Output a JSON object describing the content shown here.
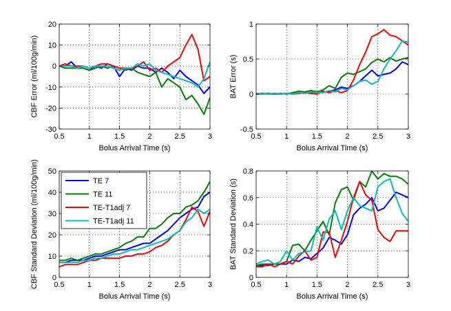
{
  "chart_data": [
    {
      "type": "line",
      "xlabel": "Bolus Arrival Time (s)",
      "ylabel": "CBF Error (ml/100g/min)",
      "xlim": [
        0.5,
        3
      ],
      "ylim": [
        -30,
        20
      ],
      "xticks": [
        0.5,
        1,
        1.5,
        2,
        2.5,
        3
      ],
      "xtick_labels": [
        "0.5",
        "1",
        "1.5",
        "2",
        "2.5",
        "3"
      ],
      "yticks": [
        -30,
        -20,
        -10,
        0,
        10,
        20
      ],
      "ytick_labels": [
        "-30",
        "-20",
        "-10",
        "0",
        "10",
        "20"
      ],
      "grid": true,
      "x": [
        0.5,
        0.6,
        0.7,
        0.8,
        0.9,
        1.0,
        1.1,
        1.2,
        1.3,
        1.4,
        1.5,
        1.6,
        1.7,
        1.8,
        1.9,
        2.0,
        2.1,
        2.2,
        2.3,
        2.4,
        2.5,
        2.6,
        2.7,
        2.8,
        2.9,
        3.0
      ],
      "series": [
        {
          "name": "TE 7",
          "color": "#0000ff",
          "values": [
            0,
            0,
            2,
            -1,
            -1,
            -2,
            0,
            -1,
            1,
            0,
            -5,
            -1,
            -2,
            0,
            -1,
            -1,
            -3,
            -1,
            -3,
            -6,
            -2,
            -5,
            -7,
            -9,
            -13,
            -10
          ]
        },
        {
          "name": "TE 11",
          "color": "#008000",
          "values": [
            0,
            -1,
            -1,
            -1,
            -1,
            -2,
            -1,
            0,
            -1,
            0,
            -1,
            -2,
            -1,
            -3,
            -4,
            -5,
            -3,
            -10,
            -6,
            -8,
            -10,
            -16,
            -14,
            -18,
            -23,
            -15
          ]
        },
        {
          "name": "TE-T1adj 7",
          "color": "#ff0000",
          "values": [
            0,
            1,
            0,
            0,
            0,
            -1,
            0,
            1,
            1,
            0,
            -1,
            -1,
            -1,
            0,
            2,
            -2,
            -1,
            -3,
            0,
            2,
            4,
            10,
            15,
            8,
            -7,
            -5
          ]
        },
        {
          "name": "TE-T1adj 11",
          "color": "#00bfbf",
          "values": [
            0,
            0,
            0,
            -1,
            0,
            -1,
            0,
            0,
            0,
            -1,
            -2,
            -1,
            -1,
            1,
            0,
            1,
            -2,
            -3,
            -4,
            -5,
            -6,
            -7,
            -8,
            -10,
            -6,
            2
          ]
        }
      ]
    },
    {
      "type": "line",
      "xlabel": "Bolus Arrival Time (s)",
      "ylabel": "BAT Error (s)",
      "xlim": [
        0.5,
        3
      ],
      "ylim": [
        -0.5,
        1
      ],
      "xticks": [
        0.5,
        1,
        1.5,
        2,
        2.5,
        3
      ],
      "xtick_labels": [
        "0.5",
        "1",
        "1.5",
        "2",
        "2.5",
        "3"
      ],
      "yticks": [
        -0.5,
        0,
        0.5,
        1
      ],
      "ytick_labels": [
        "-0.5",
        "0",
        "0.5",
        "1"
      ],
      "grid": true,
      "x": [
        0.5,
        0.6,
        0.7,
        0.8,
        0.9,
        1.0,
        1.1,
        1.2,
        1.3,
        1.4,
        1.5,
        1.6,
        1.7,
        1.8,
        1.9,
        2.0,
        2.1,
        2.2,
        2.3,
        2.4,
        2.5,
        2.6,
        2.7,
        2.8,
        2.9,
        3.0
      ],
      "series": [
        {
          "name": "TE 7",
          "color": "#0000ff",
          "values": [
            0,
            0,
            0,
            0.01,
            0,
            0.01,
            0,
            0.01,
            0.02,
            0.02,
            0.01,
            0.03,
            0.04,
            0.06,
            0.1,
            0.08,
            0.12,
            0.18,
            0.26,
            0.34,
            0.26,
            0.28,
            0.3,
            0.36,
            0.46,
            0.42
          ]
        },
        {
          "name": "TE 11",
          "color": "#008000",
          "values": [
            0,
            0.01,
            0,
            0,
            0.01,
            0,
            0.02,
            0.04,
            0.03,
            0.05,
            0.03,
            0.06,
            0.12,
            0.08,
            0.24,
            0.3,
            0.28,
            0.32,
            0.36,
            0.45,
            0.5,
            0.46,
            0.52,
            0.47,
            0.5,
            0.52
          ]
        },
        {
          "name": "TE-T1adj 7",
          "color": "#ff0000",
          "values": [
            0,
            0,
            0.01,
            0,
            0,
            0.01,
            0,
            0.01,
            0.02,
            0.01,
            0,
            0.04,
            0.02,
            0.05,
            0.02,
            0.05,
            0.2,
            0.42,
            0.6,
            0.82,
            0.86,
            0.92,
            0.84,
            0.82,
            0.76,
            0.7
          ]
        },
        {
          "name": "TE-T1adj 11",
          "color": "#00bfbf",
          "values": [
            0.01,
            0,
            0,
            0.01,
            0,
            0.01,
            0,
            0.02,
            0.01,
            0.03,
            0.02,
            0.02,
            0.05,
            0.03,
            0.08,
            0.06,
            0.12,
            0.18,
            0.2,
            0.14,
            0.18,
            0.36,
            0.5,
            0.62,
            0.76,
            0.74
          ]
        }
      ]
    },
    {
      "type": "line",
      "xlabel": "Bolus Arrival Time (s)",
      "ylabel": "CBF Standard Deviation (ml/100g/min)",
      "xlim": [
        0.5,
        3
      ],
      "ylim": [
        0,
        50
      ],
      "xticks": [
        0.5,
        1,
        1.5,
        2,
        2.5,
        3
      ],
      "xtick_labels": [
        "0.5",
        "1",
        "1.5",
        "2",
        "2.5",
        "3"
      ],
      "yticks": [
        0,
        10,
        20,
        30,
        40,
        50
      ],
      "ytick_labels": [
        "0",
        "10",
        "20",
        "30",
        "40",
        "50"
      ],
      "grid": true,
      "legend": "top-left",
      "x": [
        0.5,
        0.6,
        0.7,
        0.8,
        0.9,
        1.0,
        1.1,
        1.2,
        1.3,
        1.4,
        1.5,
        1.6,
        1.7,
        1.8,
        1.9,
        2.0,
        2.1,
        2.2,
        2.3,
        2.4,
        2.5,
        2.6,
        2.7,
        2.8,
        2.9,
        3.0
      ],
      "series": [
        {
          "name": "TE 7",
          "color": "#0000ff",
          "values": [
            7,
            7,
            8,
            8,
            8,
            9,
            10,
            10,
            11,
            12,
            13,
            13,
            14,
            15,
            16,
            16,
            18,
            20,
            22,
            25,
            28,
            30,
            32,
            33,
            38,
            40
          ]
        },
        {
          "name": "TE 11",
          "color": "#008000",
          "values": [
            8,
            8,
            9,
            8,
            9,
            10,
            11,
            11,
            12,
            13,
            14,
            16,
            17,
            19,
            19,
            23,
            23,
            25,
            28,
            30,
            30,
            33,
            34,
            36,
            40,
            45
          ]
        },
        {
          "name": "TE-T1adj 7",
          "color": "#ff0000",
          "values": [
            5,
            6,
            6,
            6,
            7,
            8,
            8,
            9,
            9,
            9,
            9,
            10,
            10,
            11,
            11,
            12,
            14,
            15,
            17,
            20,
            22,
            27,
            33,
            31,
            24,
            31
          ]
        },
        {
          "name": "TE-T1adj 11",
          "color": "#00bfbf",
          "values": [
            7,
            7,
            7,
            7,
            8,
            8,
            9,
            9,
            10,
            11,
            11,
            12,
            13,
            13,
            14,
            15,
            16,
            17,
            18,
            20,
            22,
            26,
            28,
            32,
            30,
            32
          ]
        }
      ]
    },
    {
      "type": "line",
      "xlabel": "Bolus Arrival Time (s)",
      "ylabel": "BAT Standard Deviation (s)",
      "xlim": [
        0.5,
        3
      ],
      "ylim": [
        0,
        0.8
      ],
      "xticks": [
        0.5,
        1,
        1.5,
        2,
        2.5,
        3
      ],
      "xtick_labels": [
        "0.5",
        "1",
        "1.5",
        "2",
        "2.5",
        "3"
      ],
      "yticks": [
        0,
        0.2,
        0.4,
        0.6,
        0.8
      ],
      "ytick_labels": [
        "0",
        "0.2",
        "0.4",
        "0.6",
        "0.8"
      ],
      "grid": true,
      "x": [
        0.5,
        0.6,
        0.7,
        0.8,
        0.9,
        1.0,
        1.1,
        1.2,
        1.3,
        1.4,
        1.5,
        1.6,
        1.7,
        1.8,
        1.9,
        2.0,
        2.1,
        2.2,
        2.3,
        2.4,
        2.5,
        2.6,
        2.7,
        2.8,
        2.9,
        3.0
      ],
      "series": [
        {
          "name": "TE 7",
          "color": "#0000ff",
          "values": [
            0.08,
            0.09,
            0.09,
            0.1,
            0.1,
            0.1,
            0.13,
            0.12,
            0.15,
            0.14,
            0.18,
            0.22,
            0.3,
            0.28,
            0.25,
            0.32,
            0.47,
            0.52,
            0.55,
            0.6,
            0.5,
            0.52,
            0.58,
            0.64,
            0.62,
            0.6
          ]
        },
        {
          "name": "TE 11",
          "color": "#008000",
          "values": [
            0.09,
            0.1,
            0.1,
            0.1,
            0.1,
            0.12,
            0.24,
            0.25,
            0.2,
            0.28,
            0.35,
            0.42,
            0.32,
            0.56,
            0.66,
            0.68,
            0.58,
            0.72,
            0.68,
            0.8,
            0.74,
            0.78,
            0.76,
            0.76,
            0.74,
            0.7
          ]
        },
        {
          "name": "TE-T1adj 7",
          "color": "#ff0000",
          "values": [
            0.08,
            0.08,
            0.1,
            0.08,
            0.1,
            0.12,
            0.1,
            0.16,
            0.2,
            0.13,
            0.15,
            0.34,
            0.34,
            0.15,
            0.28,
            0.42,
            0.6,
            0.72,
            0.62,
            0.58,
            0.36,
            0.3,
            0.27,
            0.35,
            0.35,
            0.35
          ]
        },
        {
          "name": "TE-T1adj 11",
          "color": "#00bfbf",
          "values": [
            0.1,
            0.12,
            0.13,
            0.1,
            0.12,
            0.2,
            0.13,
            0.18,
            0.19,
            0.2,
            0.38,
            0.28,
            0.44,
            0.5,
            0.36,
            0.5,
            0.6,
            0.54,
            0.52,
            0.5,
            0.68,
            0.72,
            0.74,
            0.6,
            0.48,
            0.42
          ]
        }
      ]
    }
  ]
}
